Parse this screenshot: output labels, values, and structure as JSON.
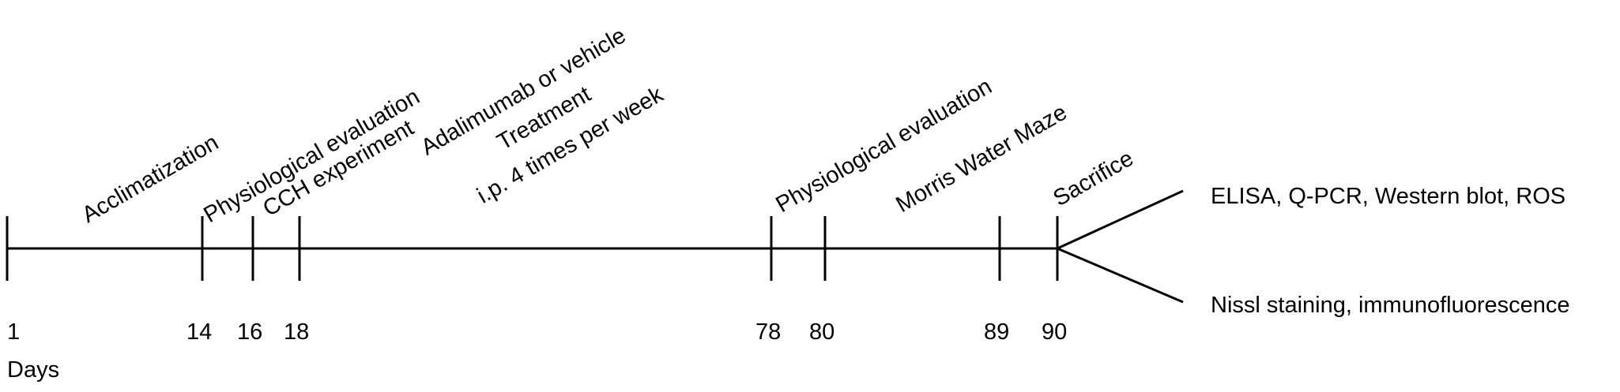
{
  "timeline": {
    "days": [
      1,
      14,
      16,
      18,
      78,
      80,
      89,
      90
    ],
    "axis_label": "Days",
    "events": [
      {
        "lines": [
          "Acclimatization"
        ]
      },
      {
        "lines": [
          "Physiological evaluation"
        ]
      },
      {
        "lines": [
          "CCH experiment"
        ]
      },
      {
        "lines": [
          "Adalimumab or vehicle",
          "Treatment",
          "i.p. 4 times per week"
        ]
      },
      {
        "lines": [
          "Physiological evaluation"
        ]
      },
      {
        "lines": [
          "Morris Water Maze"
        ]
      },
      {
        "lines": [
          "Sacrifice"
        ]
      }
    ],
    "outcomes": [
      "ELISA, Q-PCR, Western blot, ROS",
      "Nissl staining, immunofluorescence"
    ]
  }
}
